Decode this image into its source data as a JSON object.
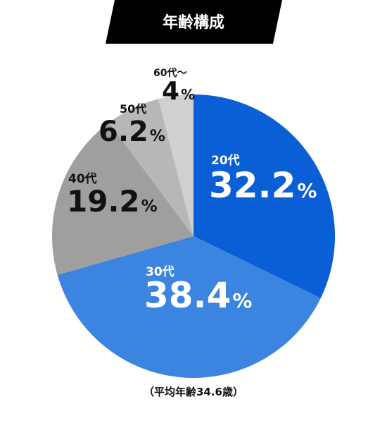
{
  "chart_data": {
    "type": "pie",
    "title": "年齢構成",
    "categories": [
      "20代",
      "30代",
      "40代",
      "50代",
      "60代〜"
    ],
    "values": [
      32.2,
      38.4,
      19.2,
      6.2,
      4
    ],
    "value_labels": [
      "32.2%",
      "38.4%",
      "19.2%",
      "6.2%",
      "4%"
    ],
    "colors": [
      "#0a5fd6",
      "#3b84e0",
      "#9f9f9f",
      "#b7b7b7",
      "#d0d0d0"
    ],
    "note": "（平均年齢34.6歳）"
  }
}
